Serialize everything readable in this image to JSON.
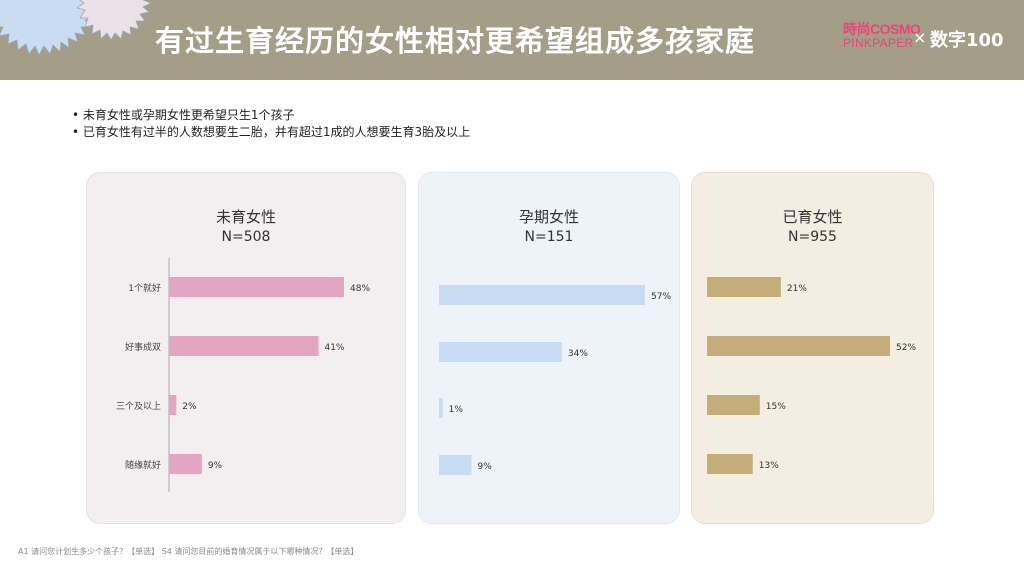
{
  "header": {
    "title": "有过生育经历的女性相对更希望组成多孩家庭",
    "logo_cosmo_top": "時尚COSMO",
    "logo_cosmo_bottom": "PINKPAPER",
    "logo_separator": "×",
    "logo_shuzi": "数字100"
  },
  "bullets": [
    "• 未育女性或孕期女性更希望只生1个孩子",
    "• 已育女性有过半的人数想要生二胎，并有超过1成的人想要生育3胎及以上"
  ],
  "colors": {
    "header_bg": "#a49d88",
    "pink": "#e3a5c1",
    "blue": "#c5dcf3",
    "gold": "#c4ad7a"
  },
  "chart_data": [
    {
      "type": "bar",
      "orientation": "horizontal",
      "title": "未育女性",
      "subtitle": "N=508",
      "categories": [
        "1个就好",
        "好事成双",
        "三个及以上",
        "随缘就好"
      ],
      "values": [
        48,
        41,
        2,
        9
      ],
      "value_labels": [
        "48%",
        "41%",
        "2%",
        "9%"
      ],
      "color": "#e3a5c1",
      "xlim": [
        0,
        60
      ]
    },
    {
      "type": "bar",
      "orientation": "horizontal",
      "title": "孕期女性",
      "subtitle": "N=151",
      "values": [
        57,
        34,
        1,
        9
      ],
      "value_labels": [
        "57%",
        "34%",
        "1%",
        "9%"
      ],
      "color": "#c5dcf3",
      "xlim": [
        0,
        60
      ]
    },
    {
      "type": "bar",
      "orientation": "horizontal",
      "title": "已育女性",
      "subtitle": "N=955",
      "values": [
        21,
        52,
        15,
        13
      ],
      "value_labels": [
        "21%",
        "52%",
        "15%",
        "13%"
      ],
      "color": "#c4ad7a",
      "xlim": [
        0,
        60
      ]
    }
  ],
  "footer": "A1 请问您计划生多少个孩子？【单选】    S4 请问您目前的婚育情况属于以下哪种情况？【单选】"
}
